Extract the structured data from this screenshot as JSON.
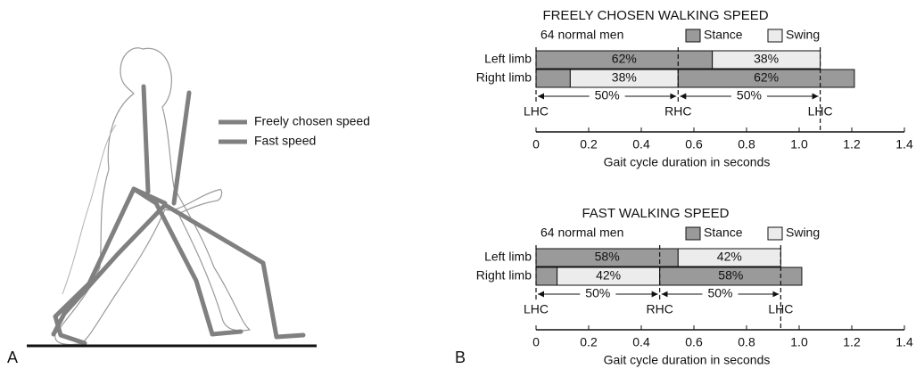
{
  "figure": {
    "panel_a_label": "A",
    "panel_b_label": "B",
    "legend": [
      {
        "name": "Freely chosen speed",
        "color": "#808080"
      },
      {
        "name": "Fast speed",
        "color": "#808080"
      }
    ]
  },
  "chart_data": [
    {
      "type": "gait-bar",
      "title": "FREELY CHOSEN WALKING SPEED",
      "subtitle": "64 normal men",
      "legend": [
        {
          "name": "Stance",
          "color": "#9a9a9a"
        },
        {
          "name": "Swing",
          "color": "#ececec"
        }
      ],
      "rows": [
        {
          "name": "Left limb",
          "segments": [
            {
              "phase": "Stance",
              "value": 0.67,
              "label": "62%"
            },
            {
              "phase": "Swing",
              "value": 0.41,
              "label": "38%"
            }
          ]
        },
        {
          "name": "Right limb",
          "segments": [
            {
              "phase": "Stance",
              "value": 0.13
            },
            {
              "phase": "Swing",
              "value": 0.41,
              "label": "38%"
            },
            {
              "phase": "Stance",
              "value": 0.67,
              "label": "62%"
            }
          ]
        }
      ],
      "events": [
        {
          "label": "LHC",
          "x": 0
        },
        {
          "label": "RHC",
          "x": 0.54
        },
        {
          "label": "LHC",
          "x": 1.08
        }
      ],
      "spans": [
        {
          "label": "50%",
          "from": 0,
          "to": 0.54
        },
        {
          "label": "50%",
          "from": 0.54,
          "to": 1.08
        }
      ],
      "xlabel": "Gait cycle duration in seconds",
      "xlim": [
        0,
        1.4
      ],
      "xticks": [
        0,
        0.2,
        0.4,
        0.6,
        0.8,
        {
          "value": 1,
          "label": "1.0"
        },
        1.2,
        1.4
      ]
    },
    {
      "type": "gait-bar",
      "title": "FAST WALKING SPEED",
      "subtitle": "64 normal men",
      "legend": [
        {
          "name": "Stance",
          "color": "#9a9a9a"
        },
        {
          "name": "Swing",
          "color": "#ececec"
        }
      ],
      "rows": [
        {
          "name": "Left limb",
          "segments": [
            {
              "phase": "Stance",
              "value": 0.54,
              "label": "58%"
            },
            {
              "phase": "Swing",
              "value": 0.39,
              "label": "42%"
            }
          ]
        },
        {
          "name": "Right limb",
          "segments": [
            {
              "phase": "Stance",
              "value": 0.08
            },
            {
              "phase": "Swing",
              "value": 0.39,
              "label": "42%"
            },
            {
              "phase": "Stance",
              "value": 0.54,
              "label": "58%"
            }
          ]
        }
      ],
      "events": [
        {
          "label": "LHC",
          "x": 0
        },
        {
          "label": "RHC",
          "x": 0.47
        },
        {
          "label": "LHC",
          "x": 0.93
        }
      ],
      "spans": [
        {
          "label": "50%",
          "from": 0,
          "to": 0.47
        },
        {
          "label": "50%",
          "from": 0.47,
          "to": 0.93
        }
      ],
      "xlabel": "Gait cycle duration in seconds",
      "xlim": [
        0,
        1.4
      ],
      "xticks": [
        0,
        0.2,
        0.4,
        0.6,
        0.8,
        {
          "value": 1,
          "label": "1.0"
        },
        1.2,
        1.4
      ]
    }
  ]
}
